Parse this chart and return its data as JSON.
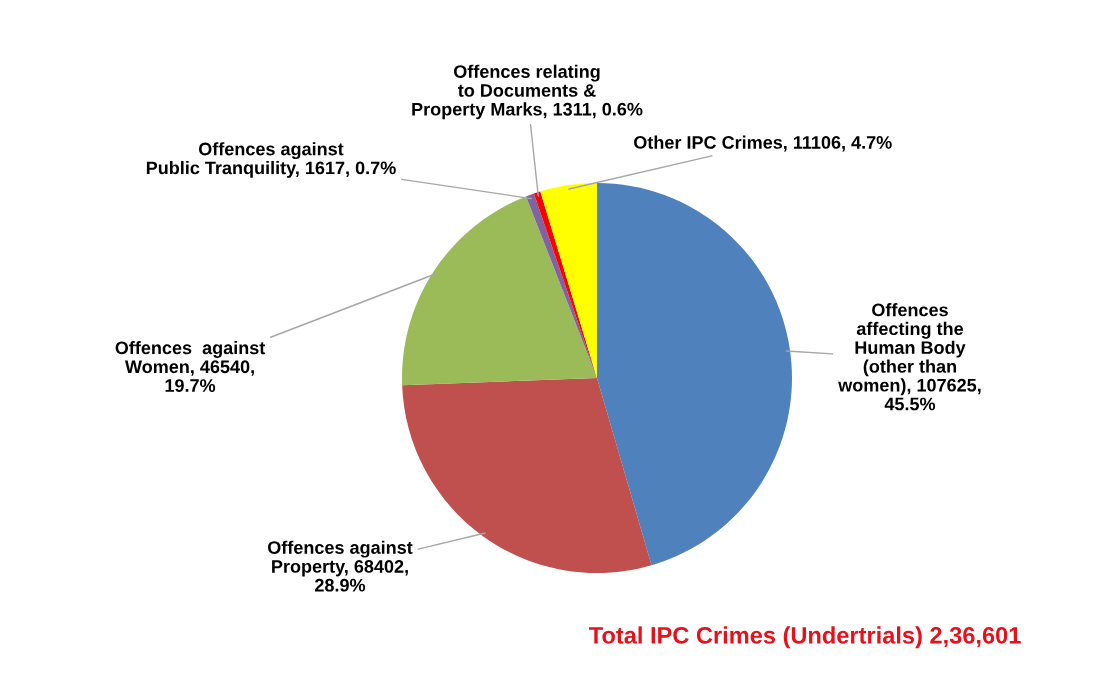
{
  "chart_data": {
    "type": "pie",
    "categories": [
      "Offences\naffecting the\nHuman Body\n(other than\nwomen)",
      "Offences against\nProperty",
      "Offences  against\nWomen",
      "Offences against\nPublic Tranquility",
      "Offences relating\nto Documents &\nProperty Marks",
      "Other IPC Crimes"
    ],
    "values": [
      107625,
      68402,
      46540,
      1617,
      1311,
      11106
    ],
    "value_labels": [
      "107625,\n45.5%",
      "68402,\n28.9%",
      "46540,\n19.7%",
      "1617, 0.7%",
      "1311, 0.6%",
      "11106, 4.7%"
    ],
    "colors": [
      "#4f81bd",
      "#c0504d",
      "#9bbb59",
      "#8064a2",
      "#ff0000",
      "#ffff00"
    ],
    "annotations": [
      "Total IPC Crimes (Undertrials) 2,36,601"
    ]
  }
}
